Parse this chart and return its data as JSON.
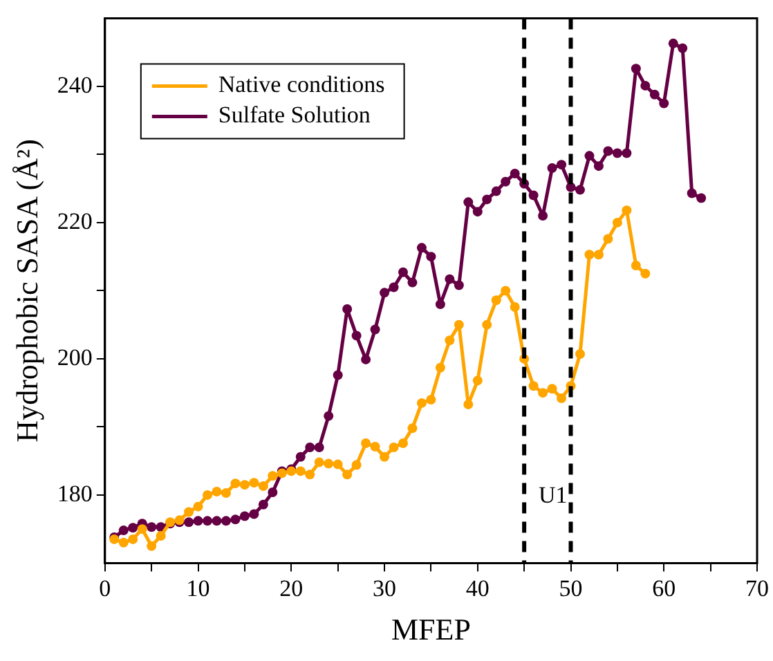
{
  "chart_data": {
    "type": "line",
    "xlabel": "MFEP",
    "ylabel": "Hydrophobic SASA (Å²)",
    "xlim": [
      0,
      70
    ],
    "xticks": [
      0,
      {
        "value": 5,
        "label": null
      },
      10,
      {
        "value": 15,
        "label": null
      },
      20,
      {
        "value": 25,
        "label": null
      },
      30,
      {
        "value": 35,
        "label": null
      },
      40,
      {
        "value": 45,
        "label": null
      },
      50,
      {
        "value": 55,
        "label": null
      },
      60,
      {
        "value": 65,
        "label": null
      },
      70
    ],
    "ylim": [
      170,
      250
    ],
    "yticks": [
      180,
      {
        "value": 190,
        "label": null
      },
      200,
      {
        "value": 210,
        "label": null
      },
      220,
      {
        "value": 230,
        "label": null
      },
      240
    ],
    "grid": false,
    "legend": "top left",
    "marker": "circle",
    "line_style": "solid",
    "series": [
      {
        "name": "Native conditions",
        "color": "#ffa500",
        "x": [
          1,
          2,
          3,
          4,
          5,
          6,
          7,
          8,
          9,
          10,
          11,
          12,
          13,
          14,
          15,
          16,
          17,
          18,
          19,
          20,
          21,
          22,
          23,
          24,
          25,
          26,
          27,
          28,
          29,
          30,
          31,
          32,
          33,
          34,
          35,
          36,
          37,
          38,
          39,
          40,
          41,
          42,
          43,
          44,
          45,
          46,
          47,
          48,
          49,
          50,
          51,
          52,
          53,
          54,
          55,
          56,
          57,
          58
        ],
        "values": [
          173.5,
          173,
          173.5,
          175,
          172.5,
          174,
          176,
          176.3,
          177.5,
          178.3,
          180,
          180.5,
          180.3,
          181.7,
          181.5,
          181.8,
          181.3,
          182.8,
          183.2,
          183.5,
          183.5,
          183,
          184.8,
          184.6,
          184.5,
          183,
          184.4,
          187.6,
          187.1,
          185.6,
          187,
          187.6,
          189.8,
          193.5,
          194,
          198.7,
          202.7,
          205,
          193.3,
          196.8,
          205,
          208.6,
          210,
          207.6,
          200,
          196,
          195,
          195.6,
          194.2,
          196,
          200.7,
          215.3,
          215.3,
          217.6,
          220,
          221.8,
          213.7,
          212.5
        ]
      },
      {
        "name": "Sulfate Solution",
        "color": "#660044",
        "x": [
          1,
          2,
          3,
          4,
          5,
          6,
          7,
          8,
          9,
          10,
          11,
          12,
          13,
          14,
          15,
          16,
          17,
          18,
          19,
          20,
          21,
          22,
          23,
          24,
          25,
          26,
          27,
          28,
          29,
          30,
          31,
          32,
          33,
          34,
          35,
          36,
          37,
          38,
          39,
          40,
          41,
          42,
          43,
          44,
          45,
          46,
          47,
          48,
          49,
          50,
          51,
          52,
          53,
          54,
          55,
          56,
          57,
          58,
          59,
          60,
          61,
          62,
          63,
          64
        ],
        "values": [
          173.8,
          174.8,
          175.2,
          175.8,
          175.3,
          175.3,
          175.8,
          176,
          176,
          176.2,
          176.2,
          176.2,
          176.2,
          176.4,
          176.9,
          177.2,
          178.6,
          180.4,
          183.5,
          183.8,
          185.6,
          187,
          187,
          191.6,
          197.6,
          207.3,
          203.4,
          199.9,
          204.3,
          209.7,
          210.5,
          212.7,
          211.2,
          216.3,
          215,
          208,
          211.7,
          210.8,
          223,
          221.6,
          223.4,
          224.6,
          226,
          227.2,
          225.7,
          224,
          221,
          228,
          228.5,
          225.2,
          224.8,
          229.8,
          228.3,
          230.5,
          230.2,
          230.2,
          242.6,
          240.1,
          238.8,
          237.5,
          246.3,
          245.6,
          224.3,
          223.6
        ]
      }
    ],
    "ref_lines": [
      {
        "axis": "x",
        "value": 45,
        "color": "#000000",
        "line_style": "dashed"
      },
      {
        "axis": "x",
        "value": 50,
        "color": "#000000",
        "line_style": "dashed"
      }
    ],
    "annotations": [
      "U1"
    ]
  }
}
